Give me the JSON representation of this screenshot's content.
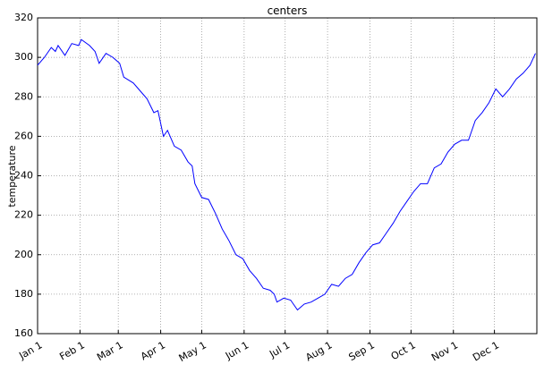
{
  "chart_data": {
    "type": "line",
    "title": "centers",
    "y_label": "temperature",
    "x": [
      0,
      5,
      10,
      13,
      15,
      20,
      25,
      30,
      32,
      38,
      42,
      45,
      50,
      55,
      60,
      63,
      70,
      75,
      80,
      85,
      88,
      92,
      95,
      100,
      105,
      110,
      113,
      115,
      120,
      125,
      130,
      135,
      140,
      145,
      150,
      155,
      160,
      165,
      170,
      173,
      175,
      180,
      185,
      190,
      195,
      200,
      205,
      210,
      215,
      220,
      225,
      230,
      235,
      240,
      245,
      250,
      255,
      260,
      265,
      270,
      275,
      280,
      285,
      290,
      295,
      300,
      305,
      310,
      315,
      320,
      325,
      330,
      335,
      340,
      345,
      350,
      355,
      360,
      364
    ],
    "series": [
      {
        "color": "#0000ff",
        "values": [
          296,
          300,
          305,
          303,
          306,
          301,
          307,
          306,
          309,
          306,
          303,
          297,
          302,
          300,
          297,
          290,
          287,
          283,
          279,
          272,
          273,
          260,
          263,
          255,
          253,
          247,
          245,
          236,
          229,
          228,
          221,
          213,
          207,
          200,
          198,
          192,
          188,
          183,
          182,
          180,
          176,
          178,
          177,
          172,
          175,
          176,
          178,
          180,
          185,
          184,
          188,
          190,
          196,
          201,
          205,
          206,
          211,
          216,
          222,
          227,
          232,
          236,
          236,
          244,
          246,
          252,
          256,
          258,
          258,
          268,
          272,
          277,
          284,
          280,
          284,
          289,
          292,
          296,
          302
        ]
      }
    ],
    "xlim": [
      0,
      365
    ],
    "ylim": [
      160,
      320
    ],
    "xticks": [
      {
        "value": 0,
        "label": "Jan 1"
      },
      {
        "value": 31,
        "label": "Feb 1"
      },
      {
        "value": 59,
        "label": "Mar 1"
      },
      {
        "value": 90,
        "label": "Apr 1"
      },
      {
        "value": 120,
        "label": "May 1"
      },
      {
        "value": 151,
        "label": "Jun 1"
      },
      {
        "value": 181,
        "label": "Jul 1"
      },
      {
        "value": 212,
        "label": "Aug 1"
      },
      {
        "value": 243,
        "label": "Sep 1"
      },
      {
        "value": 273,
        "label": "Oct 1"
      },
      {
        "value": 304,
        "label": "Nov 1"
      },
      {
        "value": 334,
        "label": "Dec 1"
      }
    ],
    "yticks": [
      160,
      180,
      200,
      220,
      240,
      260,
      280,
      300,
      320
    ],
    "grid": true
  }
}
